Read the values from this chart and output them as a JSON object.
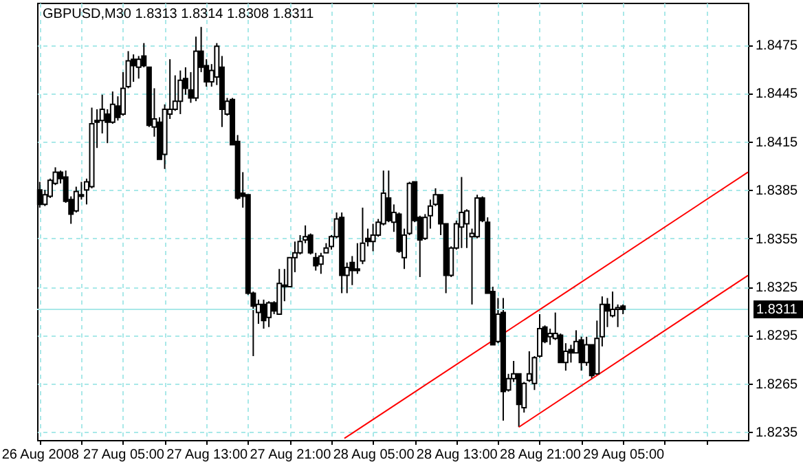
{
  "chart_data": {
    "type": "candlestick",
    "title": "GBPUSD,M30  1.8313 1.8314 1.8308 1.8311",
    "x": [
      "2008-08-26T21:00",
      "2008-08-26T21:30",
      "2008-08-26T22:00",
      "2008-08-26T22:30",
      "2008-08-26T23:00",
      "2008-08-26T23:30",
      "2008-08-27T00:00",
      "2008-08-27T00:30",
      "2008-08-27T01:00",
      "2008-08-27T01:30",
      "2008-08-27T02:00",
      "2008-08-27T02:30",
      "2008-08-27T03:00",
      "2008-08-27T03:30",
      "2008-08-27T04:00",
      "2008-08-27T04:30",
      "2008-08-27T05:00",
      "2008-08-27T05:30",
      "2008-08-27T06:00",
      "2008-08-27T06:30",
      "2008-08-27T07:00",
      "2008-08-27T07:30",
      "2008-08-27T08:00",
      "2008-08-27T08:30",
      "2008-08-27T09:00",
      "2008-08-27T09:30",
      "2008-08-27T10:00",
      "2008-08-27T10:30",
      "2008-08-27T11:00",
      "2008-08-27T11:30",
      "2008-08-27T12:00",
      "2008-08-27T12:30",
      "2008-08-27T13:00",
      "2008-08-27T13:30",
      "2008-08-27T14:00",
      "2008-08-27T14:30",
      "2008-08-27T15:00",
      "2008-08-27T15:30",
      "2008-08-27T16:00",
      "2008-08-27T16:30",
      "2008-08-27T17:00",
      "2008-08-27T17:30",
      "2008-08-27T18:00",
      "2008-08-27T18:30",
      "2008-08-27T19:00",
      "2008-08-27T19:30",
      "2008-08-27T20:00",
      "2008-08-27T20:30",
      "2008-08-27T21:00",
      "2008-08-27T21:30",
      "2008-08-27T22:00",
      "2008-08-27T22:30",
      "2008-08-27T23:00",
      "2008-08-27T23:30",
      "2008-08-28T00:00",
      "2008-08-28T00:30",
      "2008-08-28T01:00",
      "2008-08-28T01:30",
      "2008-08-28T02:00",
      "2008-08-28T02:30",
      "2008-08-28T03:00",
      "2008-08-28T03:30",
      "2008-08-28T04:00",
      "2008-08-28T04:30",
      "2008-08-28T05:00",
      "2008-08-28T05:30",
      "2008-08-28T06:00",
      "2008-08-28T06:30",
      "2008-08-28T07:00",
      "2008-08-28T07:30",
      "2008-08-28T08:00",
      "2008-08-28T08:30",
      "2008-08-28T09:00",
      "2008-08-28T09:30",
      "2008-08-28T10:00",
      "2008-08-28T10:30",
      "2008-08-28T11:00",
      "2008-08-28T11:30",
      "2008-08-28T12:00",
      "2008-08-28T12:30",
      "2008-08-28T13:00",
      "2008-08-28T13:30",
      "2008-08-28T14:00",
      "2008-08-28T14:30",
      "2008-08-28T15:00",
      "2008-08-28T15:30",
      "2008-08-28T16:00",
      "2008-08-28T16:30",
      "2008-08-28T17:00",
      "2008-08-28T17:30",
      "2008-08-28T18:00",
      "2008-08-28T18:30",
      "2008-08-28T19:00",
      "2008-08-28T19:30",
      "2008-08-28T20:00",
      "2008-08-28T20:30",
      "2008-08-28T21:00",
      "2008-08-28T21:30",
      "2008-08-28T22:00",
      "2008-08-28T22:30",
      "2008-08-28T23:00",
      "2008-08-28T23:30",
      "2008-08-29T00:00",
      "2008-08-29T00:30",
      "2008-08-29T01:00",
      "2008-08-29T01:30",
      "2008-08-29T02:00",
      "2008-08-29T02:30",
      "2008-08-29T03:00",
      "2008-08-29T03:30",
      "2008-08-29T04:00",
      "2008-08-29T04:30",
      "2008-08-29T05:00"
    ],
    "ohlc": [
      [
        1.8385,
        1.839,
        1.8374,
        1.8376
      ],
      [
        1.8376,
        1.8385,
        1.8375,
        1.8382
      ],
      [
        1.8381,
        1.8392,
        1.838,
        1.8391
      ],
      [
        1.8389,
        1.8399,
        1.8388,
        1.8396
      ],
      [
        1.8396,
        1.8397,
        1.8389,
        1.8392
      ],
      [
        1.8393,
        1.8397,
        1.8377,
        1.8378
      ],
      [
        1.8379,
        1.8381,
        1.8364,
        1.837
      ],
      [
        1.8372,
        1.8387,
        1.8371,
        1.8384
      ],
      [
        1.8382,
        1.839,
        1.8379,
        1.8381
      ],
      [
        1.8385,
        1.8392,
        1.8376,
        1.839
      ],
      [
        1.8387,
        1.8436,
        1.8386,
        1.8426
      ],
      [
        1.8428,
        1.8435,
        1.8411,
        1.8427
      ],
      [
        1.8428,
        1.8444,
        1.842,
        1.8435
      ],
      [
        1.8432,
        1.8435,
        1.8414,
        1.8427
      ],
      [
        1.8427,
        1.8446,
        1.8426,
        1.8438
      ],
      [
        1.8437,
        1.8443,
        1.8428,
        1.843
      ],
      [
        1.8432,
        1.8458,
        1.8431,
        1.8448
      ],
      [
        1.8449,
        1.8471,
        1.8448,
        1.8465
      ],
      [
        1.8466,
        1.8469,
        1.8452,
        1.8462
      ],
      [
        1.8461,
        1.8468,
        1.8454,
        1.8466
      ],
      [
        1.8468,
        1.8476,
        1.8461,
        1.8462
      ],
      [
        1.8461,
        1.8461,
        1.8424,
        1.8425
      ],
      [
        1.8424,
        1.8448,
        1.8418,
        1.8429
      ],
      [
        1.8427,
        1.843,
        1.8404,
        1.8404
      ],
      [
        1.8407,
        1.8438,
        1.8398,
        1.8435
      ],
      [
        1.8432,
        1.8466,
        1.8429,
        1.8435
      ],
      [
        1.8435,
        1.8456,
        1.8434,
        1.844
      ],
      [
        1.844,
        1.8459,
        1.8432,
        1.8453
      ],
      [
        1.8454,
        1.8461,
        1.8444,
        1.8448
      ],
      [
        1.8447,
        1.8458,
        1.8439,
        1.8442
      ],
      [
        1.8442,
        1.848,
        1.844,
        1.8471
      ],
      [
        1.8471,
        1.8486,
        1.8458,
        1.8461
      ],
      [
        1.8462,
        1.8466,
        1.8449,
        1.8452
      ],
      [
        1.8452,
        1.8463,
        1.8449,
        1.8459
      ],
      [
        1.8455,
        1.8476,
        1.845,
        1.8474
      ],
      [
        1.8461,
        1.8468,
        1.8424,
        1.8435
      ],
      [
        1.8432,
        1.8442,
        1.8431,
        1.844
      ],
      [
        1.8441,
        1.8442,
        1.8413,
        1.8413
      ],
      [
        1.8415,
        1.8419,
        1.8379,
        1.838
      ],
      [
        1.8383,
        1.8396,
        1.8374,
        1.8381
      ],
      [
        1.8382,
        1.8382,
        1.832,
        1.8321
      ],
      [
        1.8321,
        1.8322,
        1.8282,
        1.8313
      ],
      [
        1.8309,
        1.8317,
        1.8302,
        1.8314
      ],
      [
        1.8314,
        1.8317,
        1.8299,
        1.8304
      ],
      [
        1.8306,
        1.8316,
        1.83,
        1.8315
      ],
      [
        1.8315,
        1.8316,
        1.8308,
        1.831
      ],
      [
        1.8308,
        1.8336,
        1.8308,
        1.8327
      ],
      [
        1.8326,
        1.8336,
        1.8316,
        1.8325
      ],
      [
        1.8325,
        1.8343,
        1.8325,
        1.8343
      ],
      [
        1.8343,
        1.8353,
        1.8334,
        1.8346
      ],
      [
        1.8346,
        1.8357,
        1.8345,
        1.8353
      ],
      [
        1.8354,
        1.8363,
        1.8352,
        1.8356
      ],
      [
        1.8357,
        1.8358,
        1.8345,
        1.8346
      ],
      [
        1.8343,
        1.8346,
        1.8335,
        1.8338
      ],
      [
        1.8339,
        1.8346,
        1.8333,
        1.8344
      ],
      [
        1.8346,
        1.8352,
        1.8346,
        1.8349
      ],
      [
        1.835,
        1.8357,
        1.8348,
        1.8356
      ],
      [
        1.8356,
        1.8371,
        1.8355,
        1.8367
      ],
      [
        1.8368,
        1.8371,
        1.8321,
        1.8332
      ],
      [
        1.8332,
        1.834,
        1.8321,
        1.8337
      ],
      [
        1.834,
        1.8344,
        1.8326,
        1.8335
      ],
      [
        1.8336,
        1.8352,
        1.8333,
        1.8335
      ],
      [
        1.8341,
        1.8374,
        1.8339,
        1.8352
      ],
      [
        1.8355,
        1.8361,
        1.835,
        1.8353
      ],
      [
        1.8353,
        1.8364,
        1.8347,
        1.8357
      ],
      [
        1.8357,
        1.8367,
        1.8356,
        1.8365
      ],
      [
        1.8364,
        1.8397,
        1.8363,
        1.8383
      ],
      [
        1.838,
        1.8397,
        1.8365,
        1.8366
      ],
      [
        1.8365,
        1.8376,
        1.8359,
        1.8371
      ],
      [
        1.837,
        1.8371,
        1.8346,
        1.8347
      ],
      [
        1.8343,
        1.8361,
        1.8336,
        1.8357
      ],
      [
        1.8358,
        1.839,
        1.8357,
        1.8389
      ],
      [
        1.839,
        1.839,
        1.8365,
        1.8366
      ],
      [
        1.8368,
        1.8369,
        1.8331,
        1.8354
      ],
      [
        1.8355,
        1.837,
        1.8354,
        1.8368
      ],
      [
        1.8369,
        1.8379,
        1.8361,
        1.8375
      ],
      [
        1.8376,
        1.8386,
        1.8375,
        1.8382
      ],
      [
        1.8382,
        1.8382,
        1.8357,
        1.8364
      ],
      [
        1.8364,
        1.8364,
        1.8321,
        1.8332
      ],
      [
        1.8332,
        1.835,
        1.8331,
        1.8349
      ],
      [
        1.8349,
        1.8366,
        1.8348,
        1.8364
      ],
      [
        1.8362,
        1.8393,
        1.8349,
        1.8371
      ],
      [
        1.8364,
        1.8373,
        1.8349,
        1.8372
      ],
      [
        1.8356,
        1.8361,
        1.8314,
        1.8358
      ],
      [
        1.8356,
        1.8382,
        1.8355,
        1.838
      ],
      [
        1.838,
        1.8381,
        1.8365,
        1.8366
      ],
      [
        1.8365,
        1.8368,
        1.8321,
        1.8321
      ],
      [
        1.8322,
        1.8325,
        1.8289,
        1.8289
      ],
      [
        1.8291,
        1.8318,
        1.829,
        1.8308
      ],
      [
        1.8309,
        1.8318,
        1.8242,
        1.826
      ],
      [
        1.8261,
        1.8271,
        1.826,
        1.8268
      ],
      [
        1.8268,
        1.8279,
        1.8266,
        1.8271
      ],
      [
        1.8271,
        1.8271,
        1.8238,
        1.8252
      ],
      [
        1.825,
        1.8266,
        1.8247,
        1.8265
      ],
      [
        1.8267,
        1.8285,
        1.8266,
        1.8271
      ],
      [
        1.8265,
        1.8282,
        1.8261,
        1.8281
      ],
      [
        1.8282,
        1.8308,
        1.8281,
        1.8299
      ],
      [
        1.83,
        1.8301,
        1.829,
        1.8291
      ],
      [
        1.8294,
        1.8299,
        1.8289,
        1.8296
      ],
      [
        1.8293,
        1.8309,
        1.8292,
        1.8296
      ],
      [
        1.8295,
        1.8296,
        1.8278,
        1.8278
      ],
      [
        1.8278,
        1.829,
        1.8273,
        1.8285
      ],
      [
        1.8286,
        1.8289,
        1.8278,
        1.8284
      ],
      [
        1.8284,
        1.8298,
        1.8284,
        1.8291
      ],
      [
        1.8292,
        1.8294,
        1.8273,
        1.8278
      ],
      [
        1.8278,
        1.8294,
        1.8276,
        1.8289
      ],
      [
        1.8289,
        1.8289,
        1.8268,
        1.827
      ],
      [
        1.8271,
        1.8304,
        1.827,
        1.8293
      ],
      [
        1.8294,
        1.8319,
        1.8288,
        1.8314
      ],
      [
        1.8314,
        1.8318,
        1.83,
        1.831
      ],
      [
        1.8307,
        1.8322,
        1.8306,
        1.8311
      ],
      [
        1.8311,
        1.8314,
        1.83,
        1.8312
      ],
      [
        1.8313,
        1.8314,
        1.8308,
        1.8311
      ]
    ],
    "series": [
      {
        "type": "line",
        "color": "#ff0000",
        "x": [
          "2008-08-28T02:15",
          "2008-08-29T17:00"
        ],
        "values": [
          1.8231,
          1.8396
        ]
      },
      {
        "type": "line",
        "color": "#ff0000",
        "x": [
          "2008-08-28T19:00",
          "2008-08-29T17:00"
        ],
        "values": [
          1.8238,
          1.8332
        ]
      }
    ],
    "xlim": [
      "2008-08-26T20:45",
      "2008-08-29T17:00"
    ],
    "xticks": [
      {
        "value": "2008-08-26T21:00",
        "label": "26 Aug 2008"
      },
      {
        "value": "2008-08-27T01:00",
        "label": null
      },
      {
        "value": "2008-08-27T05:00",
        "label": "27 Aug 05:00"
      },
      {
        "value": "2008-08-27T09:00",
        "label": null
      },
      {
        "value": "2008-08-27T13:00",
        "label": "27 Aug 13:00"
      },
      {
        "value": "2008-08-27T17:00",
        "label": null
      },
      {
        "value": "2008-08-27T21:00",
        "label": "27 Aug 21:00"
      },
      {
        "value": "2008-08-28T01:00",
        "label": null
      },
      {
        "value": "2008-08-28T05:00",
        "label": "28 Aug 05:00"
      },
      {
        "value": "2008-08-28T09:00",
        "label": null
      },
      {
        "value": "2008-08-28T13:00",
        "label": "28 Aug 13:00"
      },
      {
        "value": "2008-08-28T17:00",
        "label": null
      },
      {
        "value": "2008-08-28T21:00",
        "label": "28 Aug 21:00"
      },
      {
        "value": "2008-08-29T01:00",
        "label": null
      },
      {
        "value": "2008-08-29T05:00",
        "label": "29 Aug 05:00"
      },
      {
        "value": "2008-08-29T09:00",
        "label": null
      },
      {
        "value": "2008-08-29T13:00",
        "label": null
      }
    ],
    "ylim": [
      1.823,
      1.8501
    ],
    "yticks": [
      1.8235,
      1.8265,
      1.8295,
      1.8325,
      1.8355,
      1.8385,
      1.8415,
      1.8445,
      1.8475
    ],
    "ref_lines": [
      {
        "axis": "y",
        "value": 1.8311,
        "label": "1.8311",
        "color": "#a8e8e8"
      }
    ],
    "grid": true,
    "line_style": "solid"
  }
}
